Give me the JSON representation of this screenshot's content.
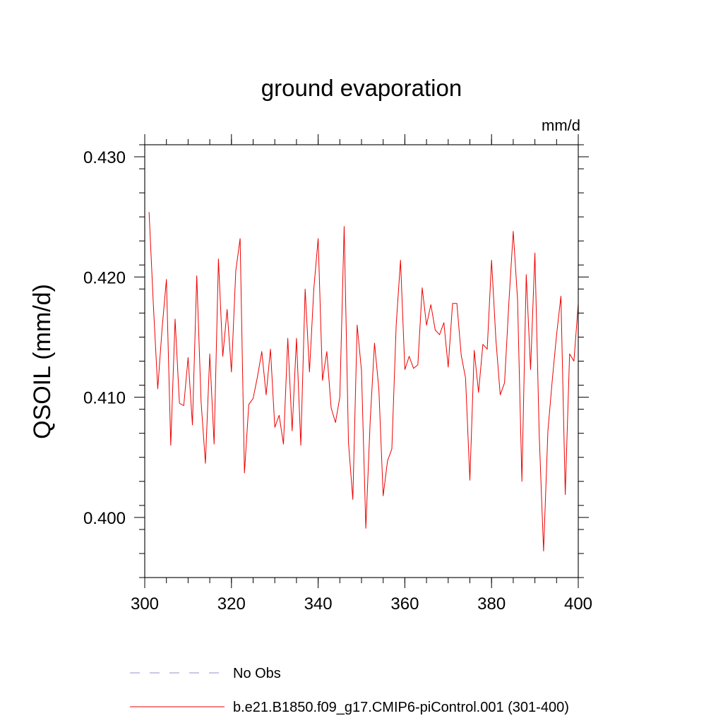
{
  "chart_data": {
    "type": "line",
    "title": "ground evaporation",
    "ylabel": "QSOIL  (mm/d)",
    "units_label": "mm/d",
    "xlim": [
      300,
      400
    ],
    "ylim": [
      0.395,
      0.431
    ],
    "x_ticks": [
      300,
      320,
      340,
      360,
      380,
      400
    ],
    "x_tick_labels": [
      "300",
      "320",
      "340",
      "360",
      "380",
      "400"
    ],
    "x_minor_step": 5,
    "y_ticks": [
      0.4,
      0.41,
      0.42,
      0.43
    ],
    "y_tick_labels": [
      "0.400",
      "0.410",
      "0.420",
      "0.430"
    ],
    "y_minor_step": 0.002,
    "series": [
      {
        "name": "b.e21.B1850.f09_g17.CMIP6-piControl.001 (301-400)",
        "color": "#ee0000",
        "x_start": 301,
        "x_step": 1,
        "values": [
          0.4254,
          0.4176,
          0.4107,
          0.4157,
          0.4198,
          0.406,
          0.4165,
          0.4095,
          0.4093,
          0.4133,
          0.4077,
          0.4201,
          0.4096,
          0.4045,
          0.4136,
          0.4061,
          0.4215,
          0.4134,
          0.4173,
          0.4121,
          0.4205,
          0.4232,
          0.4037,
          0.4094,
          0.4099,
          0.4117,
          0.4138,
          0.4102,
          0.414,
          0.4075,
          0.4085,
          0.4061,
          0.4149,
          0.4072,
          0.4149,
          0.406,
          0.419,
          0.4121,
          0.419,
          0.4232,
          0.4114,
          0.4138,
          0.4091,
          0.4079,
          0.41,
          0.4242,
          0.4062,
          0.4015,
          0.416,
          0.4122,
          0.3991,
          0.408,
          0.4145,
          0.4107,
          0.4018,
          0.4047,
          0.4057,
          0.416,
          0.4214,
          0.4123,
          0.4134,
          0.4124,
          0.4127,
          0.4191,
          0.416,
          0.4177,
          0.4156,
          0.4152,
          0.4162,
          0.4125,
          0.4178,
          0.4178,
          0.4135,
          0.4116,
          0.4031,
          0.4139,
          0.4104,
          0.4144,
          0.414,
          0.4214,
          0.4148,
          0.4102,
          0.4112,
          0.4179,
          0.4238,
          0.4181,
          0.403,
          0.4202,
          0.4123,
          0.422,
          0.4068,
          0.3972,
          0.4072,
          0.4114,
          0.4152,
          0.4184,
          0.4019,
          0.4136,
          0.413,
          0.4178
        ]
      },
      {
        "name": "No Obs",
        "color": "#9b8fcf",
        "style": "dashed",
        "values": []
      }
    ],
    "legend_position": "bottom-left"
  }
}
